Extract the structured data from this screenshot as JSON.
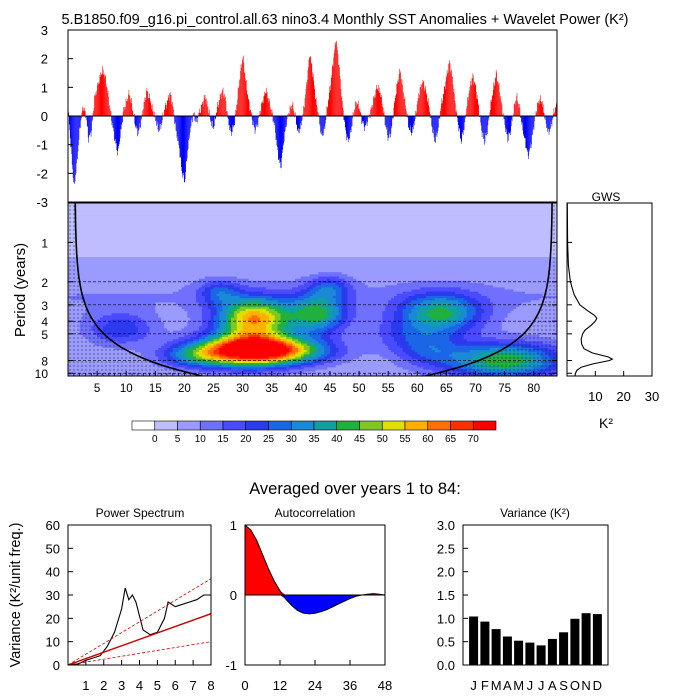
{
  "page": {
    "title": "5.B1850.f09_g16.pi_control.all.63 nino3.4 Monthly SST Anomalies + Wavelet Power (K²)",
    "avg_title": "Averaged over years 1 to 84:"
  },
  "chart_data": [
    {
      "id": "sst",
      "type": "area",
      "ylim": [
        -3,
        3
      ],
      "yticks": [
        -3,
        -2,
        -1,
        0,
        1,
        2,
        3
      ],
      "xlim": [
        0,
        84
      ],
      "colors": {
        "positive": "#ff0000",
        "negative": "#0000ff"
      },
      "envelope": [
        [
          0,
          0.2
        ],
        [
          0.5,
          -1.2
        ],
        [
          1,
          -2.5
        ],
        [
          1.5,
          -1.6
        ],
        [
          2,
          -0.4
        ],
        [
          2.5,
          0.3
        ],
        [
          3,
          0.1
        ],
        [
          3.5,
          -0.8
        ],
        [
          4,
          -0.5
        ],
        [
          4.5,
          0.6
        ],
        [
          5,
          1.0
        ],
        [
          5.5,
          1.4
        ],
        [
          6,
          1.6
        ],
        [
          6.5,
          1.2
        ],
        [
          7,
          0.5
        ],
        [
          7.5,
          -0.2
        ],
        [
          8,
          -0.8
        ],
        [
          8.5,
          -1.3
        ],
        [
          9,
          -0.6
        ],
        [
          9.5,
          0.2
        ],
        [
          10,
          0.5
        ],
        [
          10.5,
          0.8
        ],
        [
          11,
          0.3
        ],
        [
          11.5,
          -0.3
        ],
        [
          12,
          -0.6
        ],
        [
          12.5,
          -0.2
        ],
        [
          13,
          0.4
        ],
        [
          13.5,
          0.9
        ],
        [
          14,
          0.6
        ],
        [
          14.5,
          0.2
        ],
        [
          15,
          -0.1
        ],
        [
          15.5,
          -0.5
        ],
        [
          16,
          -0.3
        ],
        [
          16.5,
          0.2
        ],
        [
          17,
          0.5
        ],
        [
          17.5,
          0.8
        ],
        [
          18,
          0.3
        ],
        [
          18.5,
          -0.5
        ],
        [
          19,
          -1.0
        ],
        [
          19.5,
          -1.9
        ],
        [
          20,
          -2.3
        ],
        [
          20.5,
          -1.2
        ],
        [
          21,
          -0.4
        ],
        [
          21.5,
          0.1
        ],
        [
          22,
          -0.2
        ],
        [
          22.5,
          0.1
        ],
        [
          23,
          0.4
        ],
        [
          23.5,
          0.7
        ],
        [
          24,
          0.3
        ],
        [
          24.5,
          -0.2
        ],
        [
          25,
          -0.4
        ],
        [
          25.5,
          0.2
        ],
        [
          26,
          0.6
        ],
        [
          26.5,
          0.9
        ],
        [
          27,
          0.6
        ],
        [
          27.5,
          -0.2
        ],
        [
          28,
          -0.6
        ],
        [
          28.5,
          -0.3
        ],
        [
          29,
          0.5
        ],
        [
          29.5,
          1.4
        ],
        [
          30,
          2.1
        ],
        [
          30.5,
          1.2
        ],
        [
          31,
          0.5
        ],
        [
          31.5,
          0.0
        ],
        [
          32,
          -0.5
        ],
        [
          32.5,
          -0.3
        ],
        [
          33,
          0.2
        ],
        [
          33.5,
          0.6
        ],
        [
          34,
          0.9
        ],
        [
          34.5,
          0.5
        ],
        [
          35,
          0.1
        ],
        [
          35.5,
          -0.4
        ],
        [
          36,
          -1.3
        ],
        [
          36.5,
          -1.8
        ],
        [
          37,
          -0.9
        ],
        [
          37.5,
          -0.2
        ],
        [
          38,
          0.2
        ],
        [
          38.5,
          0.4
        ],
        [
          39,
          0.0
        ],
        [
          39.5,
          -0.6
        ],
        [
          40,
          -0.3
        ],
        [
          40.5,
          0.3
        ],
        [
          41,
          1.2
        ],
        [
          41.5,
          2.2
        ],
        [
          42,
          1.5
        ],
        [
          42.5,
          0.6
        ],
        [
          43,
          0.0
        ],
        [
          43.5,
          -0.7
        ],
        [
          44,
          -0.5
        ],
        [
          44.5,
          0.3
        ],
        [
          45,
          1.0
        ],
        [
          45.5,
          1.9
        ],
        [
          46,
          2.7
        ],
        [
          46.5,
          1.8
        ],
        [
          47,
          0.6
        ],
        [
          47.5,
          -0.3
        ],
        [
          48,
          -0.9
        ],
        [
          48.5,
          -0.6
        ],
        [
          49,
          0.1
        ],
        [
          49.5,
          0.5
        ],
        [
          50,
          0.3
        ],
        [
          50.5,
          -0.2
        ],
        [
          51,
          -0.4
        ],
        [
          51.5,
          -0.1
        ],
        [
          52,
          0.2
        ],
        [
          52.5,
          0.6
        ],
        [
          53,
          1.0
        ],
        [
          53.5,
          0.9
        ],
        [
          54,
          0.4
        ],
        [
          54.5,
          -0.3
        ],
        [
          55,
          -0.8
        ],
        [
          55.5,
          -0.5
        ],
        [
          56,
          0.4
        ],
        [
          56.5,
          1.1
        ],
        [
          57,
          1.6
        ],
        [
          57.5,
          0.9
        ],
        [
          58,
          0.3
        ],
        [
          58.5,
          -0.4
        ],
        [
          59,
          -0.6
        ],
        [
          59.5,
          -0.2
        ],
        [
          60,
          0.5
        ],
        [
          60.5,
          1.0
        ],
        [
          61,
          1.2
        ],
        [
          61.5,
          0.8
        ],
        [
          62,
          0.3
        ],
        [
          62.5,
          -0.4
        ],
        [
          63,
          -0.9
        ],
        [
          63.5,
          -0.5
        ],
        [
          64,
          0.3
        ],
        [
          64.5,
          0.8
        ],
        [
          65,
          1.4
        ],
        [
          65.5,
          1.9
        ],
        [
          66,
          1.3
        ],
        [
          66.5,
          0.4
        ],
        [
          67,
          -0.3
        ],
        [
          67.5,
          -0.9
        ],
        [
          68,
          -0.4
        ],
        [
          68.5,
          0.4
        ],
        [
          69,
          1.0
        ],
        [
          69.5,
          1.4
        ],
        [
          70,
          1.0
        ],
        [
          70.5,
          0.3
        ],
        [
          71,
          -0.5
        ],
        [
          71.5,
          -0.9
        ],
        [
          72,
          -0.5
        ],
        [
          72.5,
          0.3
        ],
        [
          73,
          0.9
        ],
        [
          73.5,
          1.5
        ],
        [
          74,
          1.0
        ],
        [
          74.5,
          0.3
        ],
        [
          75,
          -0.3
        ],
        [
          75.5,
          -0.8
        ],
        [
          76,
          -0.5
        ],
        [
          76.5,
          0.2
        ],
        [
          77,
          0.7
        ],
        [
          77.5,
          0.3
        ],
        [
          78,
          -0.4
        ],
        [
          78.5,
          -0.9
        ],
        [
          79,
          -1.4
        ],
        [
          79.5,
          -1.0
        ],
        [
          80,
          -0.3
        ],
        [
          80.5,
          0.3
        ],
        [
          81,
          0.6
        ],
        [
          81.5,
          0.4
        ],
        [
          82,
          -0.2
        ],
        [
          82.5,
          -0.6
        ],
        [
          83,
          -0.3
        ],
        [
          83.5,
          0.2
        ],
        [
          84,
          0.4
        ]
      ]
    },
    {
      "id": "wavelet",
      "type": "heatmap",
      "ylabel": "Period (years)",
      "period_ticks": [
        1,
        2,
        3,
        4,
        5,
        8,
        10
      ],
      "period_lim": [
        0.5,
        10.5
      ],
      "xticks": [
        5,
        10,
        15,
        20,
        25,
        30,
        35,
        40,
        45,
        50,
        55,
        60,
        65,
        70,
        75,
        80
      ],
      "xlim": [
        0,
        84
      ],
      "levels": [
        0,
        5,
        10,
        15,
        20,
        25,
        30,
        35,
        40,
        45,
        50,
        55,
        60,
        65,
        70
      ],
      "palette": [
        "#ffffff",
        "#bdbdff",
        "#9a9aff",
        "#7070ff",
        "#4a4aff",
        "#2c3aee",
        "#1a66e6",
        "#1a8ad6",
        "#10a0a0",
        "#20b040",
        "#80c820",
        "#e0e000",
        "#ffb000",
        "#ff7000",
        "#ff3000",
        "#ff0000"
      ],
      "blobs": [
        {
          "x": 32,
          "p": 3.8,
          "w": 4.5,
          "h": 0.25,
          "amp": 52
        },
        {
          "x": 31,
          "p": 6.6,
          "w": 6.0,
          "h": 0.2,
          "amp": 66
        },
        {
          "x": 38,
          "p": 6.8,
          "w": 6.0,
          "h": 0.16,
          "amp": 28
        },
        {
          "x": 22,
          "p": 7.3,
          "w": 4.5,
          "h": 0.15,
          "amp": 22
        },
        {
          "x": 43,
          "p": 3.5,
          "w": 3.5,
          "h": 0.25,
          "amp": 34
        },
        {
          "x": 26,
          "p": 2.4,
          "w": 2.5,
          "h": 0.15,
          "amp": 16
        },
        {
          "x": 45,
          "p": 2.2,
          "w": 2.5,
          "h": 0.14,
          "amp": 16
        },
        {
          "x": 64,
          "p": 3.5,
          "w": 5.0,
          "h": 0.25,
          "amp": 34
        },
        {
          "x": 62,
          "p": 6.5,
          "w": 4.0,
          "h": 0.22,
          "amp": 16
        },
        {
          "x": 75,
          "p": 8.0,
          "w": 7.0,
          "h": 0.22,
          "amp": 38
        },
        {
          "x": 9,
          "p": 4.6,
          "w": 4.0,
          "h": 0.2,
          "amp": 18
        },
        {
          "x": 57,
          "p": 5.0,
          "w": 4.0,
          "h": 0.22,
          "amp": 9
        }
      ],
      "coi_note": "cone of influence"
    },
    {
      "id": "colorbar",
      "type": "colorbar",
      "labels": [
        "0",
        "5",
        "10",
        "15",
        "20",
        "25",
        "30",
        "35",
        "40",
        "45",
        "50",
        "55",
        "60",
        "65",
        "70"
      ]
    },
    {
      "id": "gws",
      "type": "line",
      "title": "GWS",
      "xlabel": "K²",
      "xticks": [
        10,
        20,
        30
      ],
      "xlim": [
        0,
        30
      ],
      "period": [
        0.5,
        1,
        1.5,
        2,
        2.5,
        3,
        3.3,
        3.6,
        3.8,
        4.0,
        4.3,
        4.7,
        5.0,
        5.5,
        6.0,
        6.5,
        7.0,
        7.5,
        7.8,
        8.0,
        8.5,
        9.0,
        9.5,
        10.0,
        10.5
      ],
      "power": [
        0.1,
        0.2,
        0.5,
        1.2,
        2.5,
        4.5,
        7.0,
        9.6,
        10.5,
        10.0,
        8.5,
        6.3,
        5.5,
        5.0,
        5.2,
        6.0,
        9.0,
        14.5,
        16.0,
        15.0,
        9.0,
        5.0,
        3.5,
        3.0,
        2.8
      ]
    },
    {
      "id": "power_spectrum",
      "type": "line",
      "title": "Power Spectrum",
      "ylabel": "Variance (K²/unit freq.)",
      "xlim": [
        0,
        8
      ],
      "ylim": [
        0,
        60
      ],
      "xticks": [
        1,
        2,
        3,
        4,
        5,
        6,
        7,
        8
      ],
      "yticks": [
        0,
        10,
        20,
        30,
        40,
        50,
        60
      ],
      "series": [
        {
          "name": "spectrum",
          "x": [
            0,
            0.6,
            1.0,
            1.4,
            1.8,
            2.2,
            2.6,
            3.0,
            3.2,
            3.4,
            3.6,
            3.8,
            4.0,
            4.2,
            4.4,
            4.6,
            5.0,
            5.4,
            5.6,
            6.0,
            6.4,
            6.8,
            7.2,
            7.6,
            8.0
          ],
          "y": [
            0,
            0.5,
            2,
            3,
            4,
            8,
            14,
            24,
            33,
            28,
            30,
            27,
            21,
            15,
            14,
            13,
            14,
            20,
            27,
            25,
            26,
            27,
            28,
            30,
            30
          ],
          "color": "#000000"
        },
        {
          "name": "red-noise",
          "x": [
            0,
            8
          ],
          "y": [
            0,
            22
          ],
          "color": "#cc0000"
        },
        {
          "name": "red-noise-upper",
          "x": [
            0,
            8
          ],
          "y": [
            0,
            37
          ],
          "color": "#cc0000"
        },
        {
          "name": "red-noise-lower",
          "x": [
            0,
            8
          ],
          "y": [
            0,
            10
          ],
          "color": "#cc0000"
        }
      ]
    },
    {
      "id": "autocorrelation",
      "type": "area",
      "title": "Autocorrelation",
      "xlim": [
        0,
        48
      ],
      "ylim": [
        -1,
        1
      ],
      "xticks": [
        0,
        12,
        24,
        36,
        48
      ],
      "yticks": [
        -1,
        0,
        1
      ],
      "lags": [
        0,
        2,
        4,
        6,
        8,
        10,
        12,
        14,
        16,
        18,
        20,
        22,
        24,
        26,
        28,
        30,
        32,
        34,
        36,
        38,
        40,
        42,
        44,
        46,
        48
      ],
      "values": [
        1.0,
        0.93,
        0.78,
        0.58,
        0.38,
        0.2,
        0.06,
        -0.06,
        -0.15,
        -0.22,
        -0.26,
        -0.27,
        -0.26,
        -0.24,
        -0.21,
        -0.17,
        -0.13,
        -0.09,
        -0.05,
        -0.02,
        0.0,
        0.01,
        0.02,
        0.01,
        0.0
      ],
      "colors": {
        "positive": "#ff0000",
        "negative": "#0000ff"
      }
    },
    {
      "id": "variance",
      "type": "bar",
      "title": "Variance (K²)",
      "categories": [
        "J",
        "F",
        "M",
        "A",
        "M",
        "J",
        "J",
        "A",
        "S",
        "O",
        "N",
        "D"
      ],
      "values": [
        1.04,
        0.93,
        0.77,
        0.61,
        0.52,
        0.48,
        0.42,
        0.56,
        0.7,
        0.99,
        1.11,
        1.09
      ],
      "ylim": [
        0,
        3
      ],
      "yticks": [
        "0.0",
        "0.5",
        "1.0",
        "1.5",
        "2.0",
        "2.5",
        "3.0"
      ]
    }
  ]
}
